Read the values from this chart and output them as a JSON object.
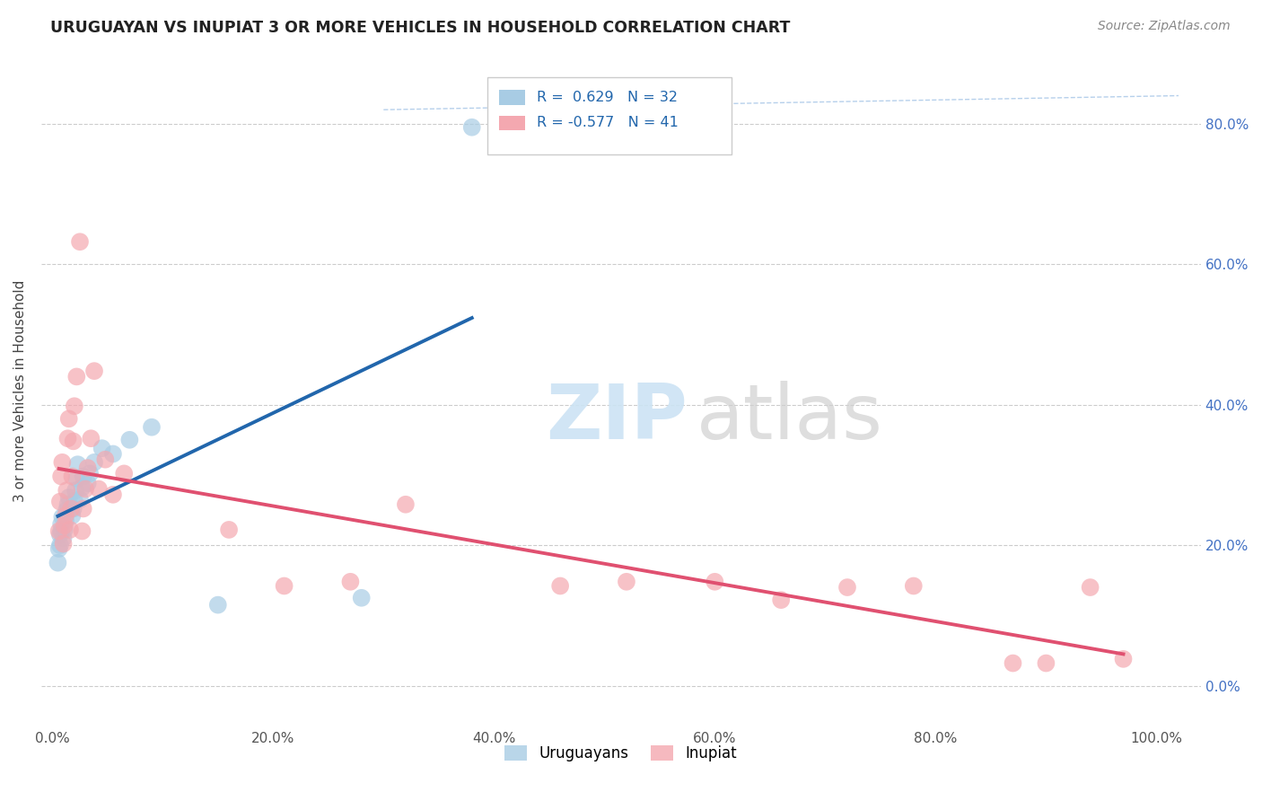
{
  "title": "URUGUAYAN VS INUPIAT 3 OR MORE VEHICLES IN HOUSEHOLD CORRELATION CHART",
  "source": "Source: ZipAtlas.com",
  "ylabel": "3 or more Vehicles in Household",
  "xlim": [
    -0.01,
    1.04
  ],
  "ylim": [
    -0.06,
    0.9
  ],
  "legend_blue_label": "Uruguayans",
  "legend_pink_label": "Inupiat",
  "R_blue": 0.629,
  "N_blue": 32,
  "R_pink": -0.577,
  "N_pink": 41,
  "blue_color": "#a8cce4",
  "pink_color": "#f4a8b0",
  "blue_line_color": "#2166ac",
  "pink_line_color": "#e05070",
  "diag_line_color": "#aac8e8",
  "background_color": "#ffffff",
  "x_tick_vals": [
    0.0,
    0.2,
    0.4,
    0.6,
    0.8,
    1.0
  ],
  "x_tick_labels": [
    "0.0%",
    "20.0%",
    "40.0%",
    "60.0%",
    "80.0%",
    "100.0%"
  ],
  "y_tick_vals": [
    0.0,
    0.2,
    0.4,
    0.6,
    0.8
  ],
  "y_tick_labels": [
    "0.0%",
    "20.0%",
    "40.0%",
    "60.0%",
    "80.0%"
  ],
  "blue_points": [
    [
      0.005,
      0.175
    ],
    [
      0.006,
      0.195
    ],
    [
      0.007,
      0.2
    ],
    [
      0.007,
      0.215
    ],
    [
      0.008,
      0.22
    ],
    [
      0.008,
      0.23
    ],
    [
      0.009,
      0.24
    ],
    [
      0.01,
      0.21
    ],
    [
      0.011,
      0.222
    ],
    [
      0.012,
      0.235
    ],
    [
      0.013,
      0.25
    ],
    [
      0.014,
      0.258
    ],
    [
      0.015,
      0.268
    ],
    [
      0.018,
      0.242
    ],
    [
      0.019,
      0.252
    ],
    [
      0.02,
      0.263
    ],
    [
      0.021,
      0.278
    ],
    [
      0.022,
      0.295
    ],
    [
      0.023,
      0.315
    ],
    [
      0.025,
      0.265
    ],
    [
      0.027,
      0.282
    ],
    [
      0.028,
      0.298
    ],
    [
      0.032,
      0.288
    ],
    [
      0.034,
      0.302
    ],
    [
      0.038,
      0.318
    ],
    [
      0.045,
      0.338
    ],
    [
      0.055,
      0.33
    ],
    [
      0.07,
      0.35
    ],
    [
      0.09,
      0.368
    ],
    [
      0.15,
      0.115
    ],
    [
      0.28,
      0.125
    ],
    [
      0.38,
      0.795
    ]
  ],
  "pink_points": [
    [
      0.006,
      0.22
    ],
    [
      0.007,
      0.262
    ],
    [
      0.008,
      0.298
    ],
    [
      0.009,
      0.318
    ],
    [
      0.01,
      0.202
    ],
    [
      0.011,
      0.228
    ],
    [
      0.012,
      0.242
    ],
    [
      0.013,
      0.278
    ],
    [
      0.014,
      0.352
    ],
    [
      0.015,
      0.38
    ],
    [
      0.016,
      0.222
    ],
    [
      0.017,
      0.252
    ],
    [
      0.018,
      0.298
    ],
    [
      0.019,
      0.348
    ],
    [
      0.02,
      0.398
    ],
    [
      0.022,
      0.44
    ],
    [
      0.025,
      0.632
    ],
    [
      0.027,
      0.22
    ],
    [
      0.028,
      0.252
    ],
    [
      0.03,
      0.28
    ],
    [
      0.032,
      0.31
    ],
    [
      0.035,
      0.352
    ],
    [
      0.038,
      0.448
    ],
    [
      0.042,
      0.28
    ],
    [
      0.048,
      0.322
    ],
    [
      0.055,
      0.272
    ],
    [
      0.065,
      0.302
    ],
    [
      0.16,
      0.222
    ],
    [
      0.21,
      0.142
    ],
    [
      0.27,
      0.148
    ],
    [
      0.32,
      0.258
    ],
    [
      0.46,
      0.142
    ],
    [
      0.52,
      0.148
    ],
    [
      0.6,
      0.148
    ],
    [
      0.66,
      0.122
    ],
    [
      0.72,
      0.14
    ],
    [
      0.78,
      0.142
    ],
    [
      0.87,
      0.032
    ],
    [
      0.9,
      0.032
    ],
    [
      0.94,
      0.14
    ],
    [
      0.97,
      0.038
    ]
  ]
}
